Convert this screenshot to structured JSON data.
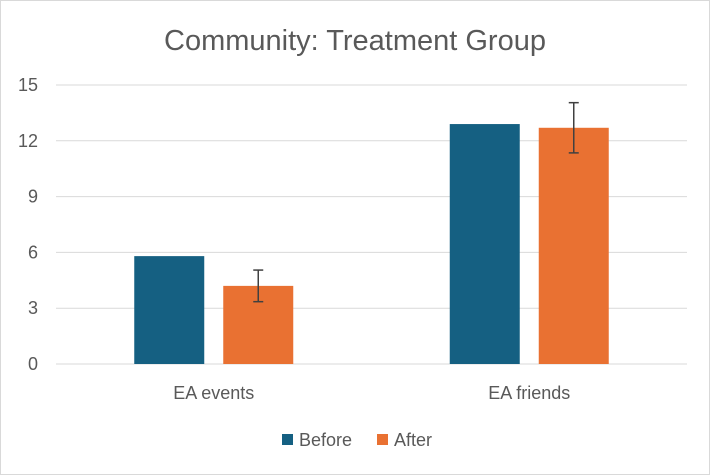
{
  "chart_data": {
    "type": "bar",
    "title": "Community: Treatment Group",
    "categories": [
      "EA events",
      "EA friends"
    ],
    "series": [
      {
        "name": "Before",
        "color": "#156082",
        "values": [
          5.8,
          12.9
        ],
        "error": [
          null,
          null
        ]
      },
      {
        "name": "After",
        "color": "#e97132",
        "values": [
          4.2,
          12.7
        ],
        "error": [
          0.85,
          1.35
        ]
      }
    ],
    "yticks": [
      "0",
      "3",
      "6",
      "9",
      "12",
      "15"
    ],
    "ylim": [
      0,
      15
    ],
    "xlabel": "",
    "ylabel": "",
    "grid": true,
    "legend": "bottom"
  }
}
